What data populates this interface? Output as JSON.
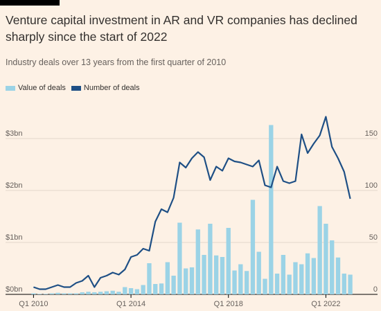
{
  "title": "Venture capital investment in AR and VR companies has declined sharply since the start of 2022",
  "subtitle": "Industry deals over 13 years from the first quarter of 2010",
  "colors": {
    "value": "#9bd3e6",
    "count": "#1e4f85",
    "background": "#fdf1e5",
    "grid": "#e3d8cc"
  },
  "chart_data": {
    "type": "bar",
    "legend": [
      {
        "label": "Value of deals",
        "color": "#9bd3e6"
      },
      {
        "label": "Number of deals",
        "color": "#1e4f85"
      }
    ],
    "x": [
      "Q1 2010",
      "Q2 2010",
      "Q3 2010",
      "Q4 2010",
      "Q1 2011",
      "Q2 2011",
      "Q3 2011",
      "Q4 2011",
      "Q1 2012",
      "Q2 2012",
      "Q3 2012",
      "Q4 2012",
      "Q1 2013",
      "Q2 2013",
      "Q3 2013",
      "Q4 2013",
      "Q1 2014",
      "Q2 2014",
      "Q3 2014",
      "Q4 2014",
      "Q1 2015",
      "Q2 2015",
      "Q3 2015",
      "Q4 2015",
      "Q1 2016",
      "Q2 2016",
      "Q3 2016",
      "Q4 2016",
      "Q1 2017",
      "Q2 2017",
      "Q3 2017",
      "Q4 2017",
      "Q1 2018",
      "Q2 2018",
      "Q3 2018",
      "Q4 2018",
      "Q1 2019",
      "Q2 2019",
      "Q3 2019",
      "Q4 2019",
      "Q1 2020",
      "Q2 2020",
      "Q3 2020",
      "Q4 2020",
      "Q1 2021",
      "Q2 2021",
      "Q3 2021",
      "Q4 2021",
      "Q1 2022",
      "Q2 2022",
      "Q3 2022",
      "Q4 2022",
      "Q1 2023"
    ],
    "xticks": [
      {
        "index": 0,
        "label": "Q1 2010"
      },
      {
        "index": 16,
        "label": "Q1 2014"
      },
      {
        "index": 32,
        "label": "Q1 2018"
      },
      {
        "index": 48,
        "label": "Q1 2022"
      }
    ],
    "series": [
      {
        "name": "Value of deals",
        "type": "bar",
        "axis": "left",
        "unit": "$bn",
        "values": [
          0.02,
          0.01,
          0.01,
          0.02,
          0.03,
          0.02,
          0.02,
          0.02,
          0.04,
          0.05,
          0.04,
          0.05,
          0.06,
          0.07,
          0.05,
          0.14,
          0.12,
          0.1,
          0.18,
          0.6,
          0.2,
          0.21,
          0.62,
          0.36,
          1.38,
          0.5,
          0.52,
          1.25,
          0.76,
          1.36,
          0.75,
          0.72,
          1.28,
          0.46,
          0.58,
          0.45,
          1.82,
          0.82,
          0.3,
          3.26,
          0.4,
          0.76,
          0.38,
          0.62,
          0.58,
          0.79,
          0.7,
          1.7,
          1.36,
          1.04,
          0.71,
          0.4,
          0.38
        ]
      },
      {
        "name": "Number of deals",
        "type": "line",
        "axis": "right",
        "values": [
          7,
          5,
          5,
          7,
          9,
          7,
          7,
          11,
          13,
          18,
          7,
          16,
          18,
          21,
          19,
          24,
          36,
          38,
          44,
          42,
          70,
          82,
          79,
          93,
          127,
          122,
          131,
          137,
          132,
          110,
          123,
          119,
          131,
          128,
          127,
          125,
          123,
          129,
          105,
          103,
          123,
          109,
          107,
          109,
          154,
          136,
          145,
          153,
          171,
          142,
          131,
          118,
          92
        ]
      }
    ],
    "left_axis": {
      "ticks": [
        0,
        1,
        2,
        3
      ],
      "labels": [
        "$0bn",
        "$1bn",
        "$2bn",
        "$3bn"
      ],
      "range": [
        0,
        3.4
      ]
    },
    "right_axis": {
      "ticks": [
        0,
        50,
        100,
        150
      ],
      "labels": [
        "0",
        "50",
        "100",
        "150"
      ],
      "range": [
        0,
        170
      ]
    },
    "grid": true
  }
}
